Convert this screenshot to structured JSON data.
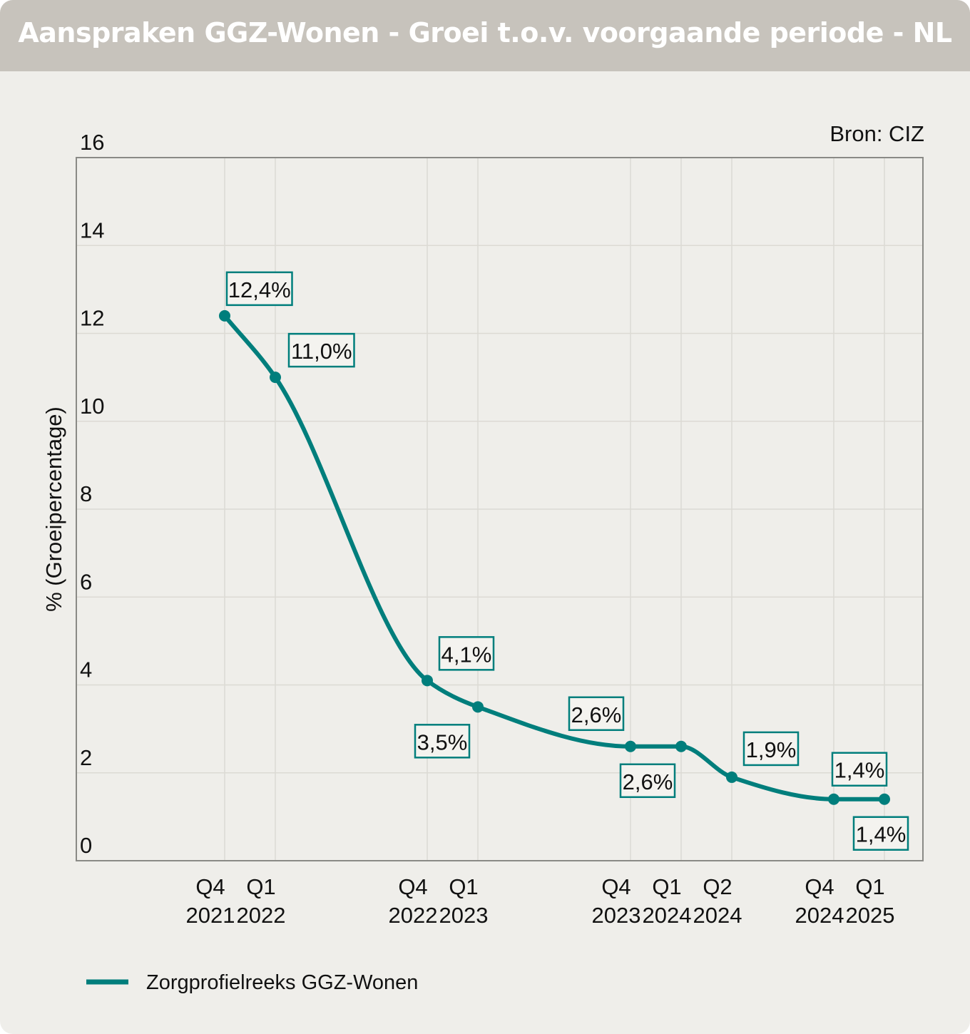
{
  "header": {
    "title": "Aanspraken GGZ-Wonen - Groei t.o.v. voorgaande periode - NL"
  },
  "source": "Bron: CIZ",
  "colors": {
    "series": "#007e7c",
    "grid": "#dcdad4",
    "header": "#c7c3bc",
    "background": "#efeeea"
  },
  "chart_data": {
    "type": "line",
    "title": "Aanspraken GGZ-Wonen - Groei t.o.v. voorgaande periode - NL",
    "ylabel": "% (Groeipercentage)",
    "xlabel": "",
    "ylim": [
      0,
      16
    ],
    "yticks": [
      0,
      2,
      4,
      6,
      8,
      10,
      12,
      14,
      16
    ],
    "grid": true,
    "legend_position": "bottom-left",
    "categories": [
      [
        "Q4",
        "2021"
      ],
      [
        "Q1",
        "2022"
      ],
      [
        "Q4",
        "2022"
      ],
      [
        "Q1",
        "2023"
      ],
      [
        "Q4",
        "2023"
      ],
      [
        "Q1",
        "2024"
      ],
      [
        "Q2",
        "2024"
      ],
      [
        "Q4",
        "2024"
      ],
      [
        "Q1",
        "2025"
      ]
    ],
    "series": [
      {
        "name": "Zorgprofielreeks GGZ-Wonen",
        "values": [
          12.4,
          11.0,
          4.1,
          3.5,
          2.6,
          2.6,
          1.9,
          1.4,
          1.4
        ],
        "labels": [
          "12,4%",
          "11,0%",
          "4,1%",
          "3,5%",
          "2,6%",
          "2,6%",
          "1,9%",
          "1,4%",
          "1,4%"
        ],
        "label_side": [
          "above",
          "above",
          "above",
          "below",
          "above",
          "below",
          "above",
          "above",
          "below"
        ]
      }
    ]
  }
}
